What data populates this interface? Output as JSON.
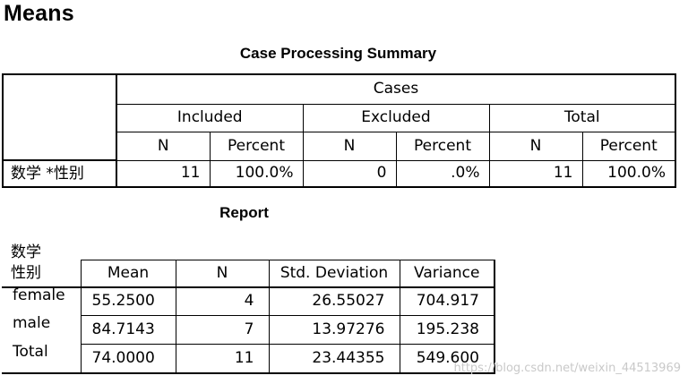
{
  "page_title": "Means",
  "case_processing": {
    "caption": "Case Processing Summary",
    "cases_label": "Cases",
    "groups": [
      "Included",
      "Excluded",
      "Total"
    ],
    "sub_headers": [
      "N",
      "Percent",
      "N",
      "Percent",
      "N",
      "Percent"
    ],
    "row_label": "数学 *性别",
    "values": [
      "11",
      "100.0%",
      "0",
      ".0%",
      "11",
      "100.0%"
    ]
  },
  "report": {
    "caption": "Report",
    "dependent_label": "数学",
    "columns": [
      "性别",
      "Mean",
      "N",
      "Std. Deviation",
      "Variance"
    ],
    "rows": [
      {
        "group": "female",
        "mean": "55.2500",
        "n": "4",
        "sd": "26.55027",
        "variance": "704.917"
      },
      {
        "group": "male",
        "mean": "84.7143",
        "n": "7",
        "sd": "13.97276",
        "variance": "195.238"
      },
      {
        "group": "Total",
        "mean": "74.0000",
        "n": "11",
        "sd": "23.44355",
        "variance": "549.600"
      }
    ]
  },
  "watermark": "https://blog.csdn.net/weixin_44513969"
}
